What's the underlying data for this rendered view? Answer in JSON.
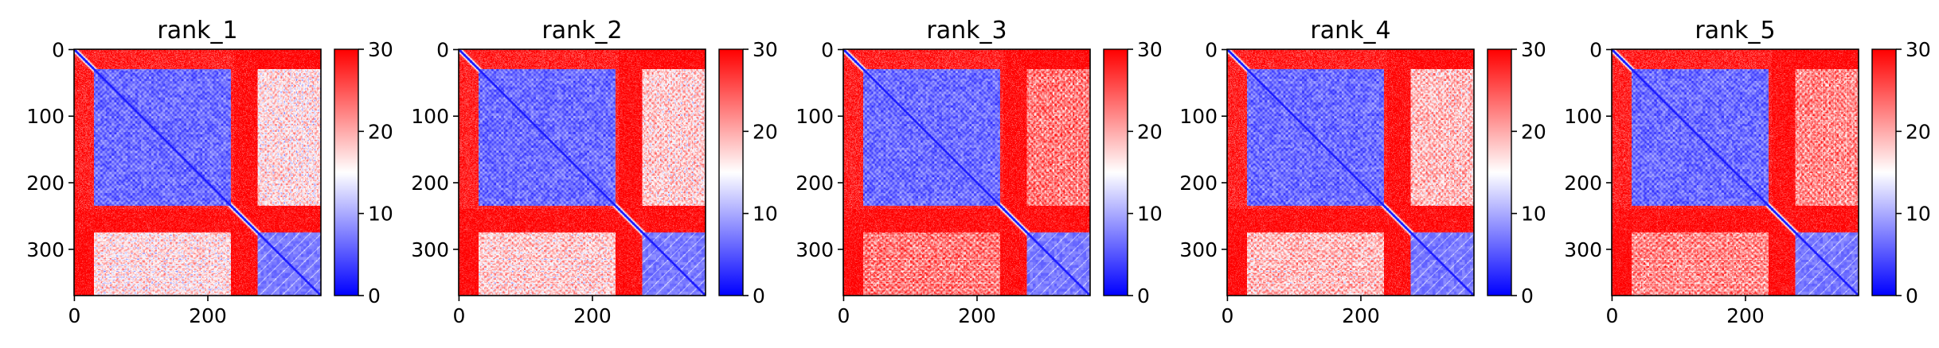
{
  "chart_data": [
    {
      "type": "heatmap",
      "title": "rank_1",
      "n": 370,
      "x_ticks": [
        0,
        200
      ],
      "y_ticks": [
        0,
        100,
        200,
        300
      ],
      "colorbar": {
        "min": 0,
        "max": 30,
        "ticks": [
          0,
          10,
          20,
          30
        ],
        "colors": [
          "#0000ff",
          "#ffffff",
          "#ff0000"
        ]
      },
      "domain_A_end": 240,
      "domain_B_start": 275,
      "block_A_start": 30,
      "block_A_end": 235,
      "block_B_start": 275,
      "block_B_end": 370,
      "interdomain_distance": 17
    },
    {
      "type": "heatmap",
      "title": "rank_2",
      "n": 370,
      "x_ticks": [
        0,
        200
      ],
      "y_ticks": [
        0,
        100,
        200,
        300
      ],
      "colorbar": {
        "min": 0,
        "max": 30,
        "ticks": [
          0,
          10,
          20,
          30
        ],
        "colors": [
          "#0000ff",
          "#ffffff",
          "#ff0000"
        ]
      },
      "domain_A_end": 240,
      "domain_B_start": 275,
      "block_A_start": 30,
      "block_A_end": 235,
      "block_B_start": 275,
      "block_B_end": 370,
      "interdomain_distance": 18
    },
    {
      "type": "heatmap",
      "title": "rank_3",
      "n": 370,
      "x_ticks": [
        0,
        200
      ],
      "y_ticks": [
        0,
        100,
        200,
        300
      ],
      "colorbar": {
        "min": 0,
        "max": 30,
        "ticks": [
          0,
          10,
          20,
          30
        ],
        "colors": [
          "#0000ff",
          "#ffffff",
          "#ff0000"
        ]
      },
      "domain_A_end": 240,
      "domain_B_start": 275,
      "block_A_start": 30,
      "block_A_end": 235,
      "block_B_start": 275,
      "block_B_end": 370,
      "interdomain_distance": 23
    },
    {
      "type": "heatmap",
      "title": "rank_4",
      "n": 370,
      "x_ticks": [
        0,
        200
      ],
      "y_ticks": [
        0,
        100,
        200,
        300
      ],
      "colorbar": {
        "min": 0,
        "max": 30,
        "ticks": [
          0,
          10,
          20,
          30
        ],
        "colors": [
          "#0000ff",
          "#ffffff",
          "#ff0000"
        ]
      },
      "domain_A_end": 240,
      "domain_B_start": 275,
      "block_A_start": 30,
      "block_A_end": 235,
      "block_B_start": 275,
      "block_B_end": 370,
      "interdomain_distance": 19
    },
    {
      "type": "heatmap",
      "title": "rank_5",
      "n": 370,
      "x_ticks": [
        0,
        200
      ],
      "y_ticks": [
        0,
        100,
        200,
        300
      ],
      "colorbar": {
        "min": 0,
        "max": 30,
        "ticks": [
          0,
          10,
          20,
          30
        ],
        "colors": [
          "#0000ff",
          "#ffffff",
          "#ff0000"
        ]
      },
      "domain_A_end": 240,
      "domain_B_start": 275,
      "block_A_start": 30,
      "block_A_end": 235,
      "block_B_start": 275,
      "block_B_end": 370,
      "interdomain_distance": 22
    }
  ]
}
